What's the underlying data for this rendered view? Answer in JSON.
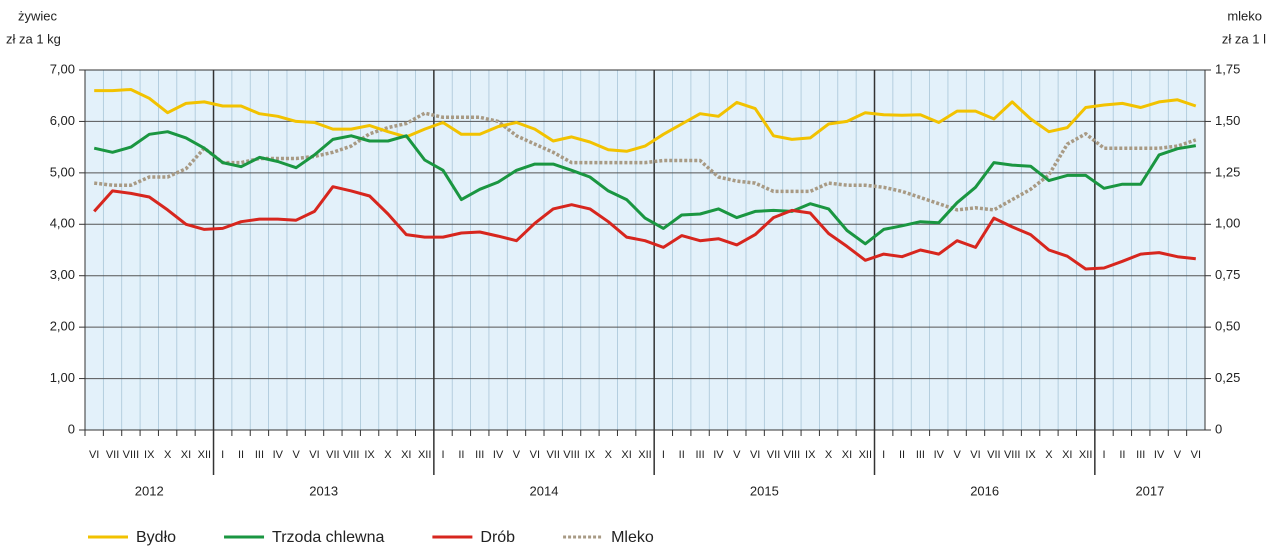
{
  "chart_data": {
    "type": "line",
    "y_label": [
      "żywiec",
      "zł za 1 kg"
    ],
    "y2_label": [
      "mleko",
      "zł za 1 l"
    ],
    "categories": [
      "VI",
      "VII",
      "VIII",
      "IX",
      "X",
      "XI",
      "XII",
      "I",
      "II",
      "III",
      "IV",
      "V",
      "VI",
      "VII",
      "VIII",
      "IX",
      "X",
      "XI",
      "XII",
      "I",
      "II",
      "III",
      "IV",
      "V",
      "VI",
      "VII",
      "VIII",
      "IX",
      "X",
      "XI",
      "XII",
      "I",
      "II",
      "III",
      "IV",
      "V",
      "VI",
      "VII",
      "VIII",
      "IX",
      "X",
      "XI",
      "XII",
      "I",
      "II",
      "III",
      "IV",
      "V",
      "VI",
      "VII",
      "VIII",
      "IX",
      "X",
      "XI",
      "XII",
      "I",
      "II",
      "III",
      "IV",
      "V",
      "VI"
    ],
    "years": [
      "2012",
      "2013",
      "2014",
      "2015",
      "2016",
      "2017"
    ],
    "series": [
      {
        "name": "Bydło",
        "color": "#f2c200",
        "values": [
          6.6,
          6.6,
          6.62,
          6.45,
          6.17,
          6.35,
          6.38,
          6.3,
          6.3,
          6.15,
          6.1,
          6.0,
          5.98,
          5.85,
          5.85,
          5.92,
          5.8,
          5.7,
          5.85,
          5.98,
          5.75,
          5.75,
          5.9,
          5.98,
          5.85,
          5.62,
          5.7,
          5.6,
          5.45,
          5.42,
          5.52,
          5.75,
          5.95,
          6.15,
          6.1,
          6.37,
          6.25,
          5.72,
          5.65,
          5.68,
          5.95,
          6.0,
          6.17,
          6.13,
          6.12,
          6.13,
          5.98,
          6.2,
          6.2,
          6.05,
          6.38,
          6.05,
          5.8,
          5.88,
          6.27,
          6.32,
          6.35,
          6.27,
          6.38,
          6.42,
          6.3
        ]
      },
      {
        "name": "Trzoda chlewna",
        "color": "#1a9641",
        "values": [
          5.48,
          5.4,
          5.5,
          5.75,
          5.8,
          5.68,
          5.48,
          5.2,
          5.12,
          5.3,
          5.22,
          5.1,
          5.35,
          5.65,
          5.72,
          5.62,
          5.62,
          5.72,
          5.25,
          5.05,
          4.48,
          4.68,
          4.82,
          5.05,
          5.17,
          5.17,
          5.05,
          4.92,
          4.65,
          4.48,
          4.12,
          3.92,
          4.18,
          4.2,
          4.3,
          4.13,
          4.25,
          4.27,
          4.25,
          4.4,
          4.3,
          3.88,
          3.62,
          3.9,
          3.97,
          4.05,
          4.03,
          4.42,
          4.72,
          5.2,
          5.15,
          5.13,
          4.85,
          4.95,
          4.95,
          4.7,
          4.78,
          4.78,
          5.35,
          5.47,
          5.53
        ]
      },
      {
        "name": "Drób",
        "color": "#d7261e",
        "values": [
          4.25,
          4.65,
          4.6,
          4.53,
          4.28,
          4.0,
          3.9,
          3.92,
          4.05,
          4.1,
          4.1,
          4.08,
          4.25,
          4.73,
          4.65,
          4.55,
          4.2,
          3.8,
          3.75,
          3.75,
          3.83,
          3.85,
          3.77,
          3.68,
          4.02,
          4.3,
          4.38,
          4.3,
          4.05,
          3.75,
          3.68,
          3.55,
          3.78,
          3.68,
          3.72,
          3.6,
          3.8,
          4.13,
          4.27,
          4.22,
          3.82,
          3.57,
          3.3,
          3.42,
          3.37,
          3.5,
          3.42,
          3.68,
          3.55,
          4.12,
          3.95,
          3.8,
          3.5,
          3.38,
          3.13,
          3.15,
          3.28,
          3.42,
          3.45,
          3.37,
          3.33
        ]
      },
      {
        "name": "Mleko",
        "color": "#a89a84",
        "dashed": true,
        "axis": "y2",
        "values": [
          1.2,
          1.19,
          1.19,
          1.23,
          1.23,
          1.27,
          1.37,
          1.3,
          1.3,
          1.32,
          1.32,
          1.32,
          1.33,
          1.35,
          1.38,
          1.44,
          1.47,
          1.49,
          1.54,
          1.52,
          1.52,
          1.52,
          1.5,
          1.43,
          1.39,
          1.35,
          1.3,
          1.3,
          1.3,
          1.3,
          1.3,
          1.31,
          1.31,
          1.31,
          1.23,
          1.21,
          1.2,
          1.16,
          1.16,
          1.16,
          1.2,
          1.19,
          1.19,
          1.18,
          1.16,
          1.13,
          1.1,
          1.07,
          1.08,
          1.07,
          1.12,
          1.17,
          1.24,
          1.39,
          1.44,
          1.37,
          1.37,
          1.37,
          1.37,
          1.38,
          1.41
        ]
      }
    ],
    "ylim": [
      0,
      7
    ],
    "yticks": [
      0,
      {
        "value": 1,
        "label": "1,00"
      },
      {
        "value": 2,
        "label": "2,00"
      },
      {
        "value": 3,
        "label": "3,00"
      },
      {
        "value": 4,
        "label": "4,00"
      },
      {
        "value": 5,
        "label": "5,00"
      },
      {
        "value": 6,
        "label": "6,00"
      },
      {
        "value": 7,
        "label": "7,00"
      }
    ],
    "y2lim": [
      0,
      1.75
    ],
    "y2ticks": [
      0,
      {
        "value": 0.25,
        "label": "0,25"
      },
      {
        "value": 0.5,
        "label": "0,50"
      },
      {
        "value": 0.75,
        "label": "0,75"
      },
      {
        "value": 1,
        "label": "1,00"
      },
      {
        "value": 1.25,
        "label": "1,25"
      },
      {
        "value": 1.5,
        "label": "1,50"
      },
      {
        "value": 1.75,
        "label": "1,75"
      }
    ],
    "grid": true,
    "legend": "bottom"
  }
}
